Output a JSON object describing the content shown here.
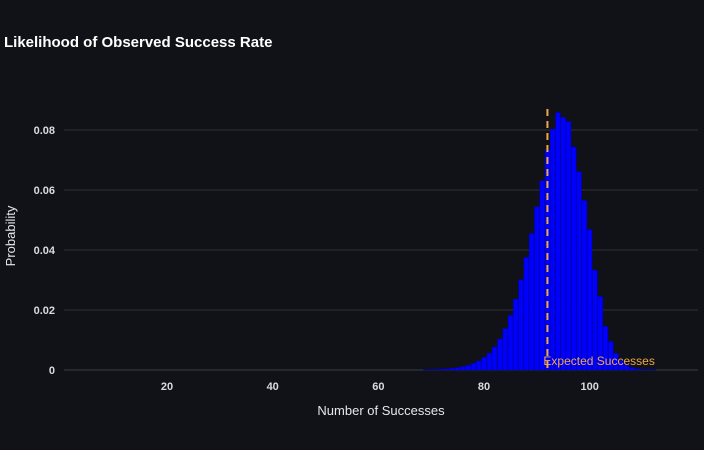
{
  "chart_data": {
    "type": "bar",
    "title": "Likelihood of Observed Success Rate",
    "xlabel": "Number of Successes",
    "ylabel": "Probability",
    "xlim": [
      0.5,
      120.5
    ],
    "ylim": [
      0,
      0.088
    ],
    "x_ticks": [
      20,
      40,
      60,
      80,
      100
    ],
    "y_ticks": [
      0,
      0.02,
      0.04,
      0.06,
      0.08
    ],
    "y_tick_labels": [
      "0",
      "0.02",
      "0.04",
      "0.06",
      "0.08"
    ],
    "grid": true,
    "legend": "none",
    "x": [
      69,
      70,
      71,
      72,
      73,
      74,
      75,
      76,
      77,
      78,
      79,
      80,
      81,
      82,
      83,
      84,
      85,
      86,
      87,
      88,
      89,
      90,
      91,
      92,
      93,
      94,
      95,
      96,
      97,
      98,
      99,
      100,
      101,
      102,
      103,
      104,
      105,
      106,
      107,
      108,
      109,
      110,
      111,
      112
    ],
    "values": [
      0.0001,
      0.0001,
      0.0002,
      0.0003,
      0.0004,
      0.0006,
      0.0008,
      0.0011,
      0.0015,
      0.0022,
      0.003,
      0.0042,
      0.0056,
      0.0076,
      0.0103,
      0.0138,
      0.0182,
      0.0236,
      0.0301,
      0.0375,
      0.0455,
      0.0544,
      0.0631,
      0.0733,
      0.0803,
      0.0858,
      0.0842,
      0.0828,
      0.0743,
      0.0661,
      0.0565,
      0.0468,
      0.0333,
      0.0245,
      0.0145,
      0.0095,
      0.0055,
      0.003,
      0.0016,
      0.0008,
      0.0004,
      0.0002,
      0.0001,
      0.0001
    ],
    "bar_color": "#0000ff",
    "bar_edge_color": "#0000b8",
    "expected": {
      "x": 92,
      "label": "Expected Successes",
      "color": "#f0a848"
    },
    "colors": {
      "background": "#101217",
      "grid": "#2f323a",
      "text": "#d9dbe2"
    }
  }
}
